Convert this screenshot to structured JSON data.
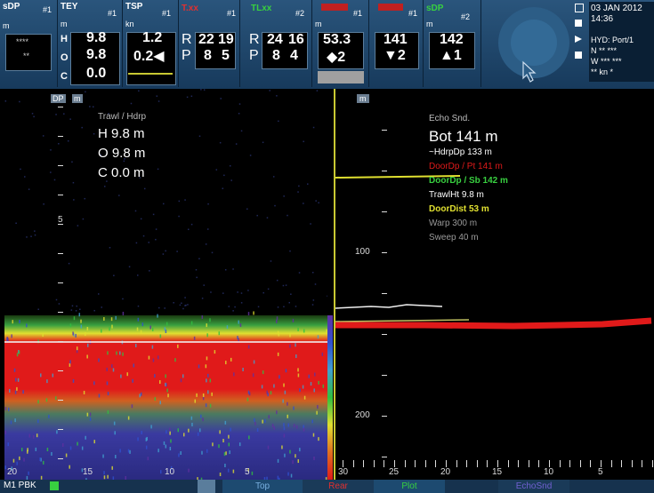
{
  "top_bar": {
    "tiles": [
      {
        "label": "sDP",
        "index": "#1",
        "unit": "m",
        "lines": [
          "****",
          "**"
        ]
      },
      {
        "label": "TEY",
        "index": "#1",
        "unit": "m",
        "rows": [
          [
            "H",
            "9.8"
          ],
          [
            "O",
            "9.8"
          ],
          [
            "C",
            "0.0"
          ]
        ]
      },
      {
        "label": "TSP",
        "index": "#1",
        "unit": "kn",
        "lines": [
          "1.2",
          "0.2◀"
        ]
      },
      {
        "label": "T.xx",
        "index": "#1",
        "rows": [
          [
            "R",
            "22",
            "19"
          ],
          [
            "P",
            "8",
            "5"
          ]
        ]
      },
      {
        "label": "TLxx",
        "index": "#2",
        "rows": [
          [
            "R",
            "24",
            "16"
          ],
          [
            "P",
            "8",
            "4"
          ]
        ]
      },
      {
        "index": "#1",
        "unit": "m",
        "lines": [
          "53.3",
          "◆2"
        ]
      },
      {
        "index": "#1",
        "lines": [
          "141",
          "▼2"
        ]
      },
      {
        "label": "sDP",
        "index": "#2",
        "unit": "m",
        "lines": [
          "142",
          "▲1"
        ]
      }
    ],
    "status": {
      "date": "03 JAN 2012",
      "time": "14:36",
      "lines": [
        "HYD: Port/1",
        "N ** ***",
        "W *** ***",
        "** kn *"
      ]
    }
  },
  "left_echogram": {
    "unit_tag": [
      "DP",
      "m"
    ],
    "info_title": "Trawl / Hdrp",
    "info_lines": [
      "H 9.8 m",
      "O 9.8 m",
      "C 0.0 m"
    ],
    "depth_labels": [
      "5"
    ],
    "time_labels": [
      "20",
      "15",
      "10",
      "5"
    ]
  },
  "right_echogram": {
    "unit_tag": "m",
    "info_title": "Echo Snd.",
    "bottom": "Bot 141 m",
    "info_lines": [
      "~HdrpDp 133 m",
      "DoorDp / Pt 141 m",
      "DoorDp / Sb 142 m",
      "TrawlHt 9.8 m",
      "DoorDist 53 m",
      "Warp 300 m",
      "Sweep 40 m"
    ],
    "depth_labels": [
      "100",
      "200"
    ],
    "time_labels": [
      "30",
      "25",
      "20",
      "15",
      "10",
      "5"
    ]
  },
  "bottom_bar": {
    "left": "M1 PBK",
    "tabs": [
      "Top",
      "Rear",
      "Plot",
      "EchoSnd"
    ]
  }
}
